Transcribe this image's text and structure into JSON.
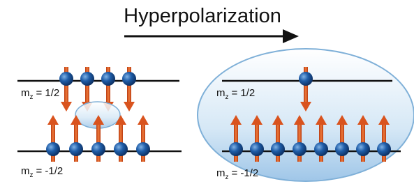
{
  "title": "Hyperpolarization",
  "left": {
    "upper_label": {
      "symbol": "m",
      "subscript": "z",
      "value": "= 1/2"
    },
    "lower_label": {
      "symbol": "m",
      "subscript": "z",
      "value": "= -1/2"
    }
  },
  "right": {
    "upper_label": {
      "symbol": "m",
      "subscript": "z",
      "value": "= 1/2"
    },
    "lower_label": {
      "symbol": "m",
      "subscript": "z",
      "value": "= -1/2"
    }
  }
}
